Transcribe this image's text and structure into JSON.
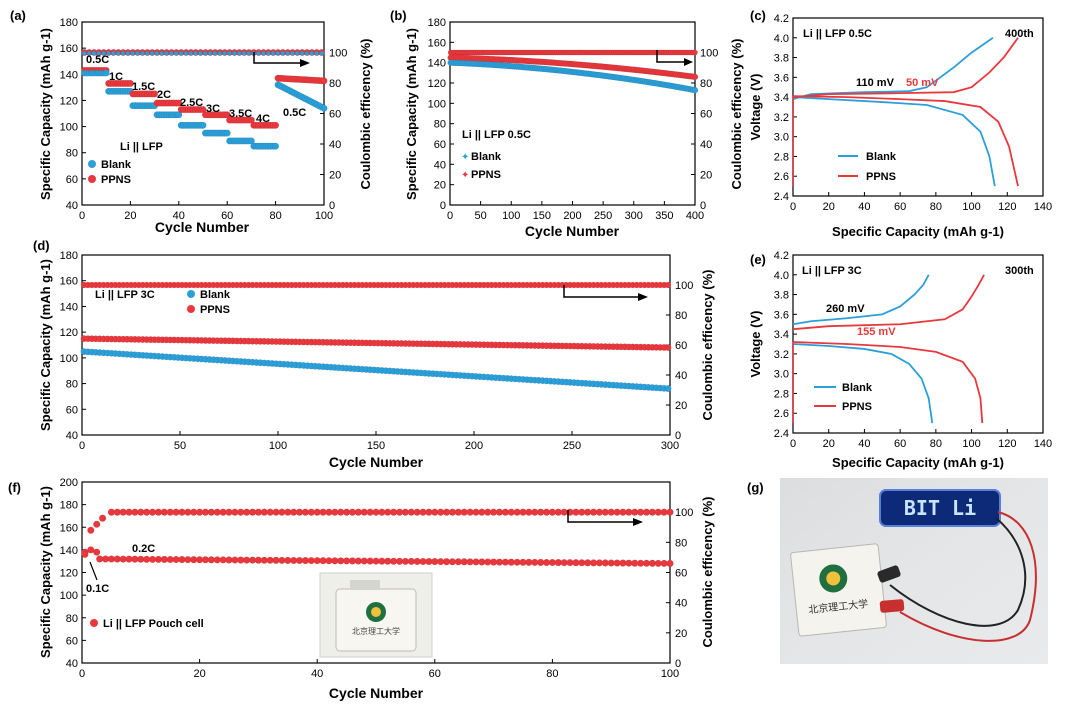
{
  "colors": {
    "blank": "#2b9fd8",
    "ppns": "#e8383d",
    "axis": "#000000",
    "photo_bg": "#e4e6e8",
    "led_bg": "#0c2a78",
    "led_text": "#c9e4ff"
  },
  "chart_data": [
    {
      "panel": "(a)",
      "type": "scatter",
      "xlabel": "Cycle Number",
      "ylabel": "Specific Capacity (mAh g-1)",
      "y2label": "Coulombic efficency (%)",
      "xlim": [
        0,
        100
      ],
      "ylim": [
        40,
        180
      ],
      "y2lim": [
        0,
        120
      ],
      "xticks": [
        0,
        20,
        40,
        60,
        80,
        100
      ],
      "yticks": [
        40,
        60,
        80,
        100,
        120,
        140,
        160,
        180
      ],
      "y2ticks": [
        0,
        20,
        40,
        60,
        80,
        100
      ],
      "legend_title": "Li || LFP",
      "rate_labels": [
        "0.5C",
        "1C",
        "1.5C",
        "2C",
        "2.5C",
        "3C",
        "3.5C",
        "4C",
        "0.5C"
      ],
      "steps": [
        {
          "from": 1,
          "to": 10,
          "blank": 141,
          "ppns": 143
        },
        {
          "from": 11,
          "to": 20,
          "blank": 127,
          "ppns": 133
        },
        {
          "from": 21,
          "to": 30,
          "blank": 116,
          "ppns": 125
        },
        {
          "from": 31,
          "to": 40,
          "blank": 109,
          "ppns": 118
        },
        {
          "from": 41,
          "to": 50,
          "blank": 101,
          "ppns": 113
        },
        {
          "from": 51,
          "to": 60,
          "blank": 95,
          "ppns": 109
        },
        {
          "from": 61,
          "to": 70,
          "blank": 89,
          "ppns": 105
        },
        {
          "from": 71,
          "to": 80,
          "blank": 85,
          "ppns": 101
        },
        {
          "from": 81,
          "to": 100,
          "blank_start": 132,
          "blank_end": 114,
          "ppns_start": 137,
          "ppns_end": 135
        }
      ],
      "ce": {
        "blank": 99.5,
        "ppns": 100
      },
      "series": [
        {
          "name": "Blank"
        },
        {
          "name": "PPNS"
        }
      ]
    },
    {
      "panel": "(b)",
      "type": "scatter",
      "xlabel": "Cycle Number",
      "ylabel": "Specific Capacity (mAh g-1)",
      "y2label": "Coulombic efficency (%)",
      "xlim": [
        0,
        400
      ],
      "ylim": [
        0,
        180
      ],
      "y2lim": [
        0,
        120
      ],
      "xticks": [
        0,
        50,
        100,
        150,
        200,
        250,
        300,
        350,
        400
      ],
      "yticks": [
        0,
        20,
        40,
        60,
        80,
        100,
        120,
        140,
        160,
        180
      ],
      "y2ticks": [
        0,
        20,
        40,
        60,
        80,
        100
      ],
      "legend_title": "Li || LFP 0.5C",
      "series": [
        {
          "name": "Blank",
          "start": 140,
          "mid": 130,
          "end": 113,
          "ce": 100
        },
        {
          "name": "PPNS",
          "start": 145,
          "mid": 138,
          "end": 126,
          "ce": 100
        }
      ]
    },
    {
      "panel": "(c)",
      "type": "line",
      "xlabel": "Specific Capacity (mAh g-1)",
      "ylabel": "Voltage (V)",
      "xlim": [
        0,
        140
      ],
      "ylim": [
        2.4,
        4.2
      ],
      "xticks": [
        0,
        20,
        40,
        60,
        80,
        100,
        120,
        140
      ],
      "yticks": [
        2.4,
        2.6,
        2.8,
        3.0,
        3.2,
        3.4,
        3.6,
        3.8,
        4.0,
        4.2
      ],
      "title": "Li || LFP 0.5C",
      "corner_label": "400th",
      "annotations": [
        "110 mV",
        "50 mV"
      ],
      "series": [
        {
          "name": "Blank",
          "charge": [
            [
              0,
              3.38
            ],
            [
              10,
              3.43
            ],
            [
              40,
              3.45
            ],
            [
              65,
              3.46
            ],
            [
              75,
              3.5
            ],
            [
              90,
              3.7
            ],
            [
              100,
              3.85
            ],
            [
              112,
              4.0
            ]
          ],
          "discharge": [
            [
              0,
              3.4
            ],
            [
              20,
              3.38
            ],
            [
              50,
              3.35
            ],
            [
              75,
              3.32
            ],
            [
              95,
              3.22
            ],
            [
              105,
              3.05
            ],
            [
              110,
              2.8
            ],
            [
              113,
              2.5
            ]
          ]
        },
        {
          "name": "PPNS",
          "charge": [
            [
              0,
              3.4
            ],
            [
              20,
              3.43
            ],
            [
              60,
              3.44
            ],
            [
              90,
              3.45
            ],
            [
              100,
              3.5
            ],
            [
              110,
              3.65
            ],
            [
              118,
              3.8
            ],
            [
              126,
              4.0
            ]
          ],
          "discharge": [
            [
              0,
              3.41
            ],
            [
              30,
              3.4
            ],
            [
              60,
              3.38
            ],
            [
              85,
              3.36
            ],
            [
              105,
              3.3
            ],
            [
              115,
              3.15
            ],
            [
              121,
              2.9
            ],
            [
              126,
              2.5
            ]
          ]
        }
      ]
    },
    {
      "panel": "(d)",
      "type": "scatter",
      "xlabel": "Cycle Number",
      "ylabel": "Specific Capacity (mAh g-1)",
      "y2label": "Coulombic efficency (%)",
      "xlim": [
        0,
        300
      ],
      "ylim": [
        40,
        180
      ],
      "y2lim": [
        0,
        120
      ],
      "xticks": [
        0,
        50,
        100,
        150,
        200,
        250,
        300
      ],
      "yticks": [
        40,
        60,
        80,
        100,
        120,
        140,
        160,
        180
      ],
      "y2ticks": [
        0,
        20,
        40,
        60,
        80,
        100
      ],
      "legend_title": "Li || LFP 3C",
      "series": [
        {
          "name": "Blank",
          "start": 105,
          "end": 76,
          "ce": 100
        },
        {
          "name": "PPNS",
          "start": 115,
          "end": 108,
          "ce": 100
        }
      ]
    },
    {
      "panel": "(e)",
      "type": "line",
      "xlabel": "Specific Capacity (mAh g-1)",
      "ylabel": "Voltage (V)",
      "xlim": [
        0,
        140
      ],
      "ylim": [
        2.4,
        4.2
      ],
      "xticks": [
        0,
        20,
        40,
        60,
        80,
        100,
        120,
        140
      ],
      "yticks": [
        2.4,
        2.6,
        2.8,
        3.0,
        3.2,
        3.4,
        3.6,
        3.8,
        4.0,
        4.2
      ],
      "title": "Li || LFP 3C",
      "corner_label": "300th",
      "annotations": [
        "260 mV",
        "155 mV"
      ],
      "series": [
        {
          "name": "Blank",
          "charge": [
            [
              0,
              3.5
            ],
            [
              10,
              3.53
            ],
            [
              30,
              3.56
            ],
            [
              50,
              3.6
            ],
            [
              60,
              3.68
            ],
            [
              68,
              3.8
            ],
            [
              73,
              3.9
            ],
            [
              76,
              4.0
            ]
          ],
          "discharge": [
            [
              0,
              3.3
            ],
            [
              20,
              3.28
            ],
            [
              40,
              3.25
            ],
            [
              55,
              3.2
            ],
            [
              65,
              3.1
            ],
            [
              72,
              2.95
            ],
            [
              76,
              2.75
            ],
            [
              78,
              2.5
            ]
          ]
        },
        {
          "name": "PPNS",
          "charge": [
            [
              0,
              3.45
            ],
            [
              20,
              3.48
            ],
            [
              60,
              3.5
            ],
            [
              85,
              3.55
            ],
            [
              95,
              3.65
            ],
            [
              100,
              3.78
            ],
            [
              104,
              3.9
            ],
            [
              107,
              4.0
            ]
          ],
          "discharge": [
            [
              0,
              3.32
            ],
            [
              30,
              3.3
            ],
            [
              60,
              3.27
            ],
            [
              80,
              3.22
            ],
            [
              95,
              3.12
            ],
            [
              102,
              2.95
            ],
            [
              105,
              2.75
            ],
            [
              106,
              2.5
            ]
          ]
        }
      ]
    },
    {
      "panel": "(f)",
      "type": "scatter",
      "xlabel": "Cycle Number",
      "ylabel": "Specific Capacity (mAh g-1)",
      "y2label": "Coulombic efficency (%)",
      "xlim": [
        0,
        100
      ],
      "ylim": [
        40,
        200
      ],
      "y2lim": [
        0,
        120
      ],
      "xticks": [
        0,
        20,
        40,
        60,
        80,
        100
      ],
      "yticks": [
        40,
        60,
        80,
        100,
        120,
        140,
        160,
        180,
        200
      ],
      "y2ticks": [
        0,
        20,
        40,
        60,
        80,
        100
      ],
      "legend_title": "Li || LFP Pouch cell",
      "rate_labels": [
        "0.1C",
        "0.2C"
      ],
      "series": [
        {
          "name": "PPNS",
          "initial": [
            138,
            140,
            138
          ],
          "start": 132,
          "end": 128,
          "ce_initial": [
            72,
            88,
            92,
            96
          ],
          "ce": 100
        }
      ]
    }
  ],
  "photo": {
    "panel_label": "(g)",
    "led_text": "BIT Li",
    "pouch_text": "北京理工大学"
  },
  "inset": {
    "pouch_text": "北京理工大学"
  }
}
